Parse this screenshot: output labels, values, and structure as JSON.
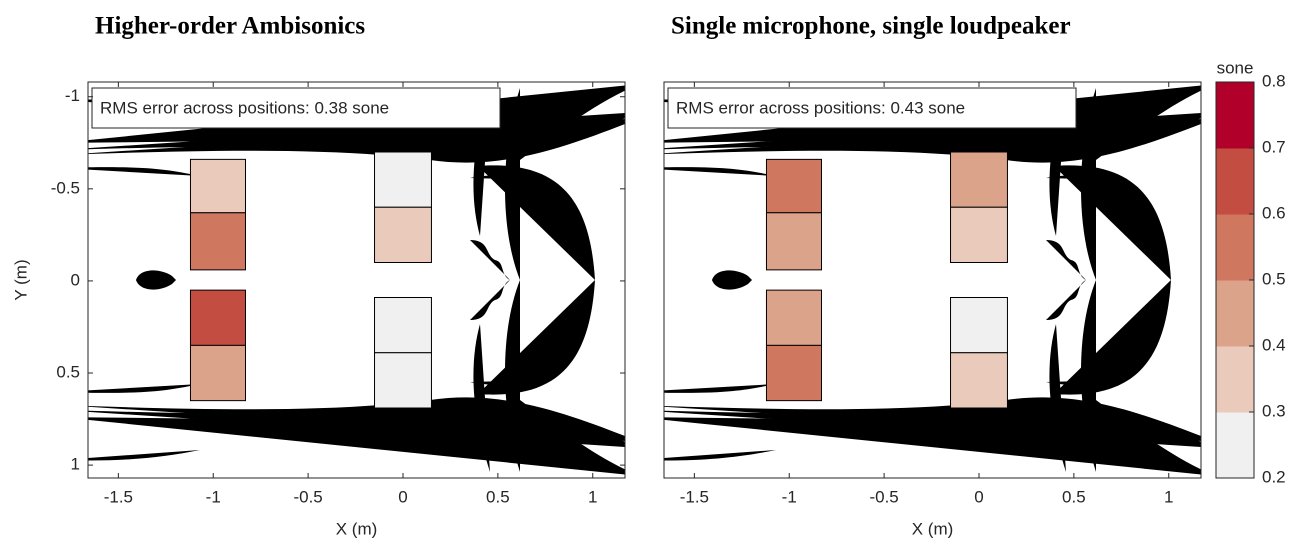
{
  "chart_data": [
    {
      "type": "heatmap",
      "title": "Higher-order Ambisonics",
      "annotation": "RMS error across positions: 0.38 sone",
      "xlabel": "X (m)",
      "ylabel": "Y (m)",
      "xlim": [
        -1.66,
        1.17
      ],
      "ylim": [
        -1.08,
        1.07
      ],
      "y_reversed": true,
      "xticks": [
        -1.5,
        -1,
        -0.5,
        0,
        0.5,
        1
      ],
      "yticks": [
        -1,
        -0.5,
        0,
        0.5,
        1
      ],
      "values": [
        0.35,
        0.55,
        0.65,
        0.45,
        0.25,
        0.35,
        0.25,
        0.25
      ]
    },
    {
      "type": "heatmap",
      "title": "Single microphone, single loudpeaker",
      "annotation": "RMS error across positions: 0.43 sone",
      "xlabel": "X (m)",
      "xlim": [
        -1.66,
        1.17
      ],
      "ylim": [
        -1.08,
        1.07
      ],
      "y_reversed": true,
      "xticks": [
        -1.5,
        -1,
        -0.5,
        0,
        0.5,
        1
      ],
      "values": [
        0.55,
        0.45,
        0.45,
        0.55,
        0.45,
        0.35,
        0.25,
        0.35
      ],
      "colorbar": {
        "label": "sone",
        "lim": [
          0.2,
          0.8
        ],
        "ticks": [
          0.2,
          0.3,
          0.4,
          0.5,
          0.6,
          0.7,
          0.8
        ],
        "colors": [
          "#f0f0f0",
          "#eacbbb",
          "#dca38b",
          "#cf775f",
          "#c24d40",
          "#b1002a"
        ]
      }
    }
  ]
}
